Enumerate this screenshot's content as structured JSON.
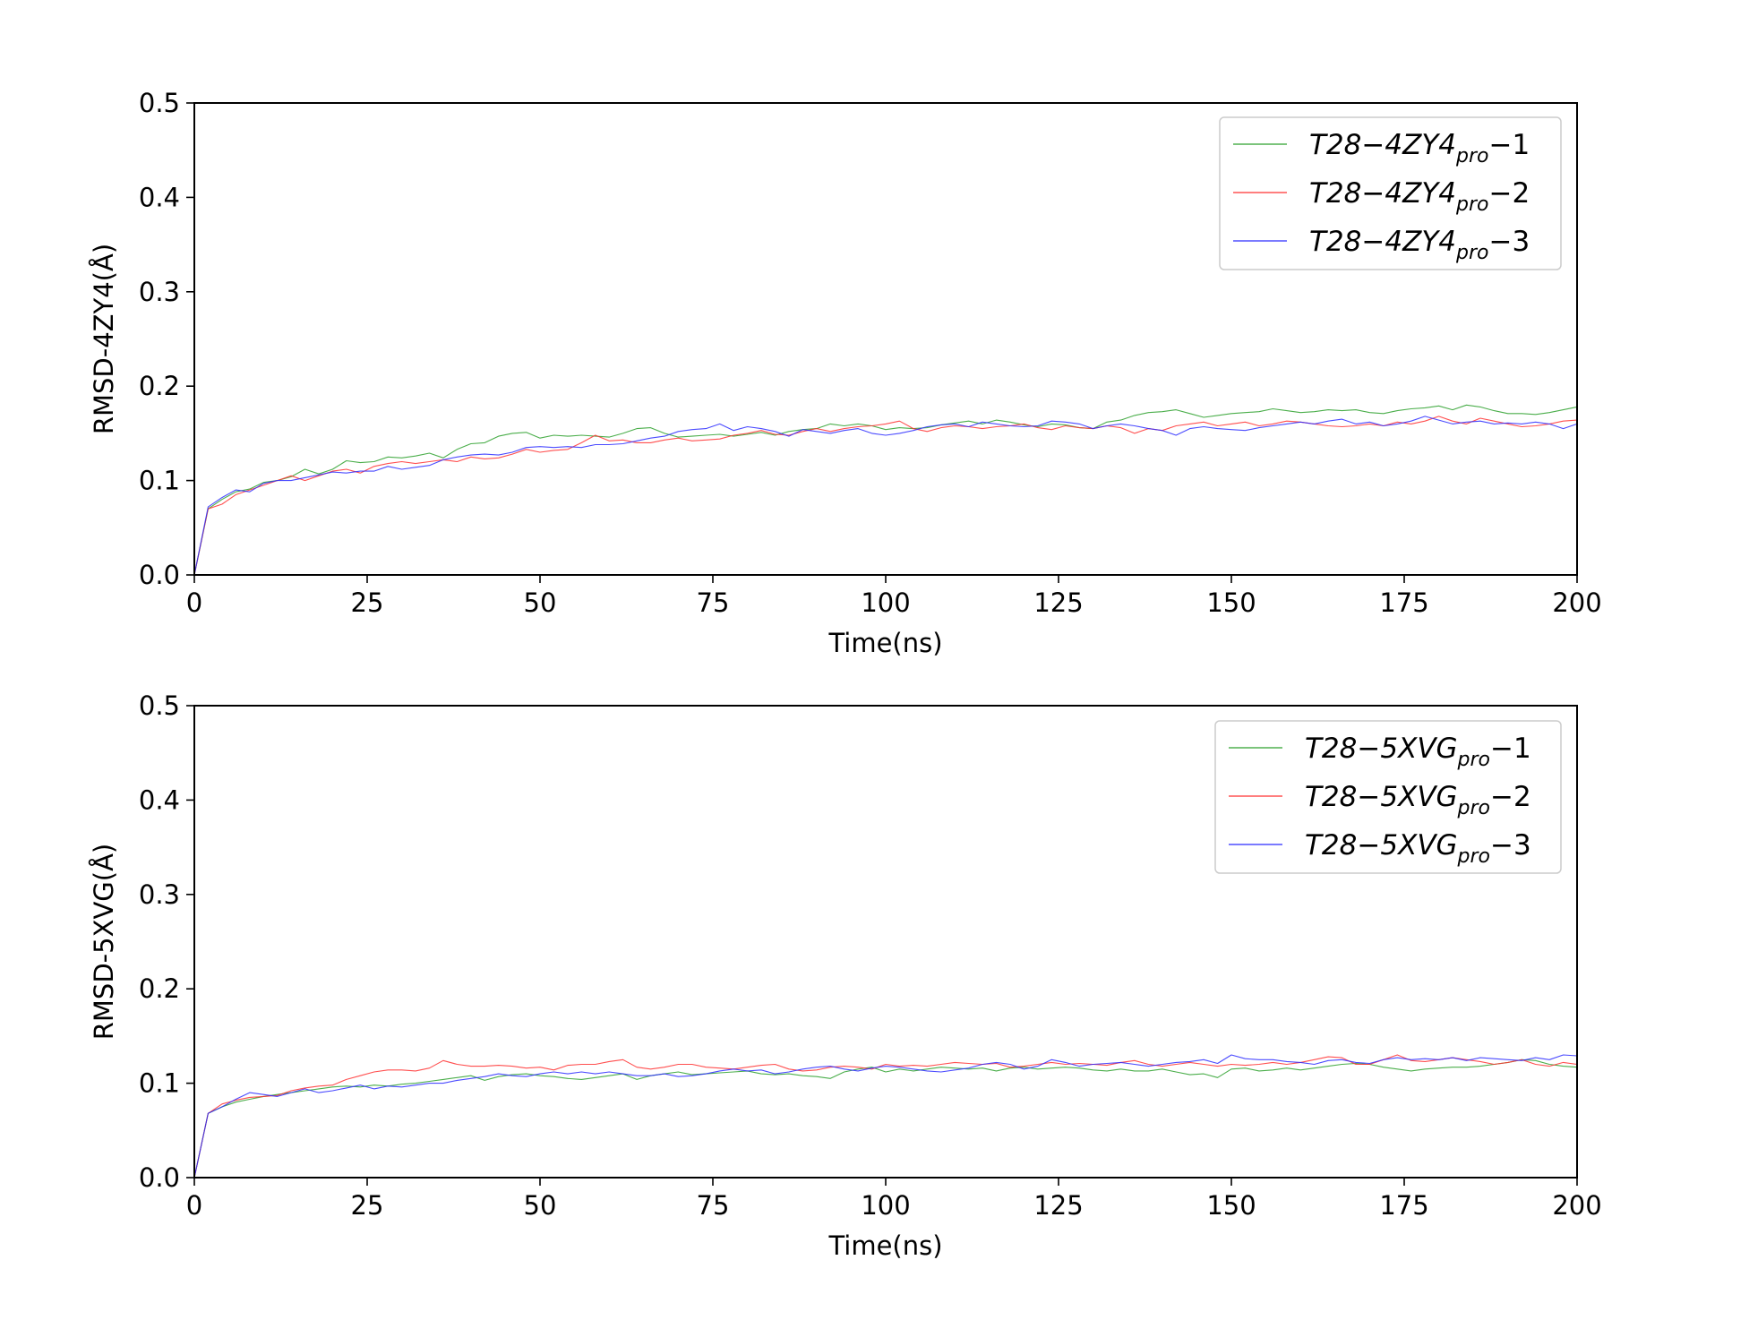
{
  "chart_data": [
    {
      "type": "line",
      "xlabel": "Time(ns)",
      "ylabel": "RMSD-4ZY4(Å)",
      "xlim": [
        0,
        200
      ],
      "ylim": [
        0,
        0.5
      ],
      "xticks": [
        "0",
        "25",
        "50",
        "75",
        "100",
        "125",
        "150",
        "175",
        "200"
      ],
      "yticks": [
        "0.0",
        "0.1",
        "0.2",
        "0.3",
        "0.4",
        "0.5"
      ],
      "grid": false,
      "legend_position": "top-right",
      "x": [
        0,
        2,
        4,
        6,
        8,
        10,
        12,
        14,
        16,
        18,
        20,
        22,
        24,
        26,
        28,
        30,
        32,
        34,
        36,
        38,
        40,
        42,
        44,
        46,
        48,
        50,
        52,
        54,
        56,
        58,
        60,
        62,
        64,
        66,
        68,
        70,
        72,
        74,
        76,
        78,
        80,
        82,
        84,
        86,
        88,
        90,
        92,
        94,
        96,
        98,
        100,
        102,
        104,
        106,
        108,
        110,
        112,
        114,
        116,
        118,
        120,
        122,
        124,
        126,
        128,
        130,
        132,
        134,
        136,
        138,
        140,
        142,
        144,
        146,
        148,
        150,
        152,
        154,
        156,
        158,
        160,
        162,
        164,
        166,
        168,
        170,
        172,
        174,
        176,
        178,
        180,
        182,
        184,
        186,
        188,
        190,
        192,
        194,
        196,
        198,
        200
      ],
      "series": [
        {
          "name": "T28−4ZY4pro−1",
          "color": "#2ca02c",
          "legend": {
            "base": "T28−4ZY4",
            "sub": "pro",
            "suffix": "−1"
          },
          "values": [
            0.0,
            0.07,
            0.08,
            0.088,
            0.091,
            0.098,
            0.1,
            0.104,
            0.112,
            0.107,
            0.112,
            0.121,
            0.119,
            0.12,
            0.125,
            0.124,
            0.126,
            0.129,
            0.124,
            0.133,
            0.139,
            0.14,
            0.147,
            0.15,
            0.151,
            0.145,
            0.148,
            0.147,
            0.148,
            0.147,
            0.146,
            0.15,
            0.155,
            0.156,
            0.15,
            0.146,
            0.147,
            0.148,
            0.149,
            0.147,
            0.149,
            0.151,
            0.148,
            0.152,
            0.154,
            0.155,
            0.16,
            0.158,
            0.16,
            0.158,
            0.154,
            0.156,
            0.155,
            0.156,
            0.159,
            0.161,
            0.163,
            0.16,
            0.164,
            0.162,
            0.159,
            0.157,
            0.16,
            0.159,
            0.156,
            0.155,
            0.162,
            0.164,
            0.169,
            0.172,
            0.173,
            0.175,
            0.171,
            0.167,
            0.169,
            0.171,
            0.172,
            0.173,
            0.176,
            0.174,
            0.172,
            0.173,
            0.175,
            0.174,
            0.175,
            0.172,
            0.171,
            0.174,
            0.176,
            0.177,
            0.179,
            0.175,
            0.18,
            0.178,
            0.174,
            0.171,
            0.171,
            0.17,
            0.172,
            0.175,
            0.178
          ]
        },
        {
          "name": "T28−4ZY4pro−2",
          "color": "#ff3030",
          "legend": {
            "base": "T28−4ZY4",
            "sub": "pro",
            "suffix": "−2"
          },
          "values": [
            0.0,
            0.07,
            0.075,
            0.085,
            0.09,
            0.095,
            0.1,
            0.105,
            0.1,
            0.105,
            0.11,
            0.112,
            0.108,
            0.115,
            0.118,
            0.12,
            0.118,
            0.12,
            0.122,
            0.12,
            0.125,
            0.123,
            0.124,
            0.128,
            0.133,
            0.13,
            0.132,
            0.133,
            0.14,
            0.148,
            0.142,
            0.143,
            0.14,
            0.14,
            0.143,
            0.145,
            0.142,
            0.143,
            0.144,
            0.148,
            0.15,
            0.153,
            0.149,
            0.148,
            0.152,
            0.155,
            0.152,
            0.155,
            0.157,
            0.158,
            0.16,
            0.163,
            0.155,
            0.152,
            0.156,
            0.158,
            0.157,
            0.155,
            0.157,
            0.158,
            0.16,
            0.156,
            0.154,
            0.158,
            0.156,
            0.155,
            0.158,
            0.156,
            0.15,
            0.155,
            0.153,
            0.158,
            0.16,
            0.162,
            0.158,
            0.16,
            0.162,
            0.158,
            0.16,
            0.163,
            0.162,
            0.16,
            0.158,
            0.157,
            0.158,
            0.16,
            0.158,
            0.162,
            0.16,
            0.163,
            0.168,
            0.163,
            0.16,
            0.166,
            0.163,
            0.16,
            0.157,
            0.158,
            0.16,
            0.163,
            0.164
          ]
        },
        {
          "name": "T28−4ZY4pro−3",
          "color": "#2b2bff",
          "legend": {
            "base": "T28−4ZY4",
            "sub": "pro",
            "suffix": "−3"
          },
          "values": [
            0.0,
            0.072,
            0.082,
            0.09,
            0.088,
            0.097,
            0.1,
            0.1,
            0.103,
            0.106,
            0.109,
            0.108,
            0.11,
            0.11,
            0.115,
            0.112,
            0.114,
            0.116,
            0.122,
            0.125,
            0.127,
            0.128,
            0.127,
            0.13,
            0.135,
            0.136,
            0.135,
            0.136,
            0.135,
            0.138,
            0.138,
            0.139,
            0.142,
            0.145,
            0.147,
            0.152,
            0.154,
            0.155,
            0.16,
            0.153,
            0.157,
            0.155,
            0.152,
            0.147,
            0.154,
            0.152,
            0.15,
            0.153,
            0.155,
            0.15,
            0.148,
            0.15,
            0.153,
            0.157,
            0.159,
            0.16,
            0.157,
            0.162,
            0.16,
            0.158,
            0.157,
            0.158,
            0.163,
            0.162,
            0.16,
            0.155,
            0.158,
            0.16,
            0.158,
            0.155,
            0.153,
            0.148,
            0.155,
            0.157,
            0.155,
            0.154,
            0.153,
            0.156,
            0.158,
            0.16,
            0.162,
            0.16,
            0.163,
            0.165,
            0.16,
            0.162,
            0.158,
            0.16,
            0.163,
            0.168,
            0.164,
            0.16,
            0.162,
            0.163,
            0.16,
            0.161,
            0.16,
            0.162,
            0.16,
            0.155,
            0.16
          ]
        }
      ]
    },
    {
      "type": "line",
      "xlabel": "Time(ns)",
      "ylabel": "RMSD-5XVG(Å)",
      "xlim": [
        0,
        200
      ],
      "ylim": [
        0,
        0.5
      ],
      "xticks": [
        "0",
        "25",
        "50",
        "75",
        "100",
        "125",
        "150",
        "175",
        "200"
      ],
      "yticks": [
        "0.0",
        "0.1",
        "0.2",
        "0.3",
        "0.4",
        "0.5"
      ],
      "grid": false,
      "legend_position": "top-right",
      "x": [
        0,
        2,
        4,
        6,
        8,
        10,
        12,
        14,
        16,
        18,
        20,
        22,
        24,
        26,
        28,
        30,
        32,
        34,
        36,
        38,
        40,
        42,
        44,
        46,
        48,
        50,
        52,
        54,
        56,
        58,
        60,
        62,
        64,
        66,
        68,
        70,
        72,
        74,
        76,
        78,
        80,
        82,
        84,
        86,
        88,
        90,
        92,
        94,
        96,
        98,
        100,
        102,
        104,
        106,
        108,
        110,
        112,
        114,
        116,
        118,
        120,
        122,
        124,
        126,
        128,
        130,
        132,
        134,
        136,
        138,
        140,
        142,
        144,
        146,
        148,
        150,
        152,
        154,
        156,
        158,
        160,
        162,
        164,
        166,
        168,
        170,
        172,
        174,
        176,
        178,
        180,
        182,
        184,
        186,
        188,
        190,
        192,
        194,
        196,
        198,
        200
      ],
      "series": [
        {
          "name": "T28−5XVGpro−1",
          "color": "#2ca02c",
          "legend": {
            "base": "T28−5XVG",
            "sub": "pro",
            "suffix": "−1"
          },
          "values": [
            0.0,
            0.068,
            0.075,
            0.08,
            0.083,
            0.086,
            0.088,
            0.09,
            0.092,
            0.094,
            0.096,
            0.097,
            0.096,
            0.098,
            0.097,
            0.099,
            0.1,
            0.102,
            0.104,
            0.106,
            0.108,
            0.103,
            0.107,
            0.109,
            0.11,
            0.108,
            0.107,
            0.105,
            0.104,
            0.106,
            0.108,
            0.11,
            0.104,
            0.108,
            0.11,
            0.112,
            0.109,
            0.11,
            0.111,
            0.112,
            0.113,
            0.11,
            0.109,
            0.11,
            0.108,
            0.107,
            0.105,
            0.112,
            0.115,
            0.117,
            0.112,
            0.115,
            0.113,
            0.115,
            0.117,
            0.116,
            0.115,
            0.116,
            0.113,
            0.116,
            0.117,
            0.115,
            0.116,
            0.117,
            0.116,
            0.114,
            0.113,
            0.115,
            0.113,
            0.113,
            0.115,
            0.112,
            0.109,
            0.11,
            0.106,
            0.115,
            0.116,
            0.113,
            0.114,
            0.116,
            0.114,
            0.116,
            0.118,
            0.12,
            0.121,
            0.12,
            0.117,
            0.115,
            0.113,
            0.115,
            0.116,
            0.117,
            0.117,
            0.118,
            0.12,
            0.122,
            0.125,
            0.124,
            0.12,
            0.118,
            0.117
          ]
        },
        {
          "name": "T28−5XVGpro−2",
          "color": "#ff3030",
          "legend": {
            "base": "T28−5XVG",
            "sub": "pro",
            "suffix": "−2"
          },
          "values": [
            0.0,
            0.068,
            0.078,
            0.082,
            0.085,
            0.086,
            0.087,
            0.092,
            0.095,
            0.097,
            0.098,
            0.104,
            0.108,
            0.112,
            0.114,
            0.114,
            0.113,
            0.116,
            0.124,
            0.12,
            0.118,
            0.118,
            0.119,
            0.118,
            0.116,
            0.117,
            0.114,
            0.119,
            0.12,
            0.12,
            0.123,
            0.125,
            0.117,
            0.115,
            0.117,
            0.12,
            0.12,
            0.117,
            0.116,
            0.115,
            0.117,
            0.119,
            0.12,
            0.115,
            0.113,
            0.114,
            0.117,
            0.118,
            0.117,
            0.115,
            0.12,
            0.118,
            0.119,
            0.118,
            0.12,
            0.122,
            0.121,
            0.12,
            0.121,
            0.117,
            0.118,
            0.12,
            0.122,
            0.12,
            0.121,
            0.12,
            0.119,
            0.122,
            0.124,
            0.12,
            0.118,
            0.12,
            0.122,
            0.12,
            0.118,
            0.12,
            0.119,
            0.12,
            0.122,
            0.12,
            0.122,
            0.125,
            0.128,
            0.127,
            0.12,
            0.12,
            0.125,
            0.13,
            0.124,
            0.123,
            0.125,
            0.127,
            0.125,
            0.123,
            0.12,
            0.122,
            0.125,
            0.12,
            0.118,
            0.122,
            0.12
          ]
        },
        {
          "name": "T28−5XVGpro−3",
          "color": "#2b2bff",
          "legend": {
            "base": "T28−5XVG",
            "sub": "pro",
            "suffix": "−3"
          },
          "values": [
            0.0,
            0.068,
            0.075,
            0.083,
            0.09,
            0.088,
            0.086,
            0.09,
            0.094,
            0.09,
            0.092,
            0.095,
            0.098,
            0.094,
            0.097,
            0.096,
            0.098,
            0.1,
            0.1,
            0.103,
            0.105,
            0.107,
            0.11,
            0.108,
            0.107,
            0.11,
            0.112,
            0.11,
            0.112,
            0.11,
            0.112,
            0.11,
            0.108,
            0.108,
            0.11,
            0.107,
            0.108,
            0.11,
            0.113,
            0.115,
            0.113,
            0.114,
            0.11,
            0.112,
            0.115,
            0.117,
            0.118,
            0.115,
            0.113,
            0.116,
            0.118,
            0.117,
            0.115,
            0.113,
            0.112,
            0.114,
            0.116,
            0.12,
            0.122,
            0.12,
            0.115,
            0.118,
            0.125,
            0.122,
            0.118,
            0.12,
            0.121,
            0.122,
            0.12,
            0.118,
            0.12,
            0.122,
            0.123,
            0.125,
            0.121,
            0.13,
            0.126,
            0.125,
            0.125,
            0.123,
            0.122,
            0.12,
            0.124,
            0.125,
            0.122,
            0.121,
            0.125,
            0.127,
            0.125,
            0.126,
            0.125,
            0.127,
            0.124,
            0.127,
            0.126,
            0.125,
            0.124,
            0.127,
            0.125,
            0.13,
            0.129
          ]
        }
      ]
    }
  ]
}
